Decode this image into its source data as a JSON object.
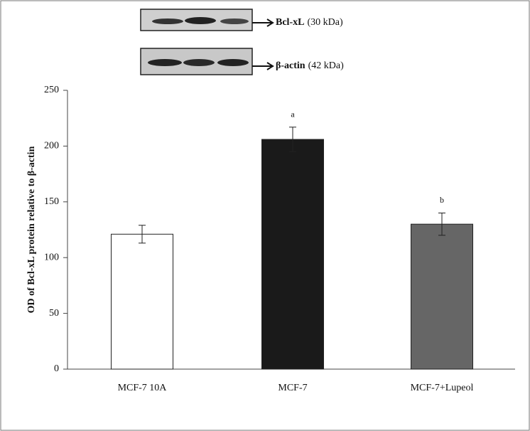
{
  "chart_data": {
    "type": "bar",
    "ylabel": "OD of Bcl-xL protein  relative to β-actin",
    "categories": [
      "MCF-7 10A",
      "MCF-7",
      "MCF-7+Lupeol"
    ],
    "values": [
      121,
      206,
      130
    ],
    "errors": [
      8,
      11,
      10
    ],
    "colors": [
      "#ffffff",
      "#1a1a1a",
      "#666666"
    ],
    "annotations": [
      {
        "text": "a",
        "x": "MCF-7"
      },
      {
        "text": "b",
        "x": "MCF-7+Lupeol"
      }
    ],
    "blots": [
      {
        "name": "Bcl-xL",
        "size": "(30 kDa)"
      },
      {
        "name": "β-actin",
        "size": "(42 kDa)"
      }
    ],
    "ylim": [
      0,
      250
    ],
    "yticks": [
      0,
      50,
      100,
      150,
      200,
      250
    ]
  }
}
